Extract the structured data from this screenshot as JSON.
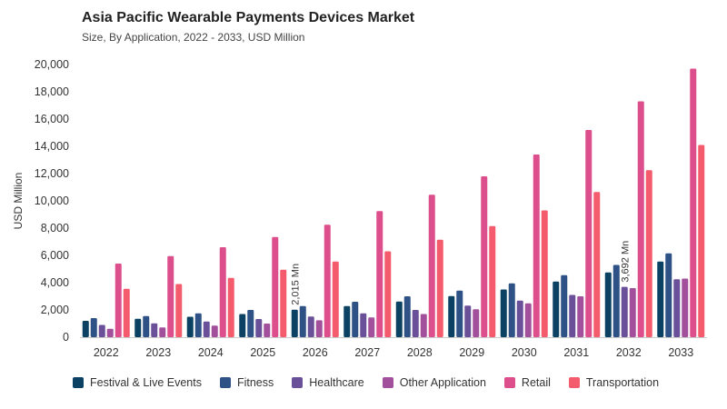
{
  "header": {
    "title": "Asia Pacific Wearable Payments Devices Market",
    "subtitle": "Size, By Application, 2022 - 2033, USD Million"
  },
  "chart_data": {
    "type": "bar",
    "title": "Asia Pacific Wearable Payments Devices Market",
    "subtitle": "Size, By Application, 2022 - 2033, USD Million",
    "xlabel": "",
    "ylabel": "USD Million",
    "ylim": [
      0,
      20000
    ],
    "yticks": [
      "0",
      "2,000",
      "4,000",
      "6,000",
      "8,000",
      "10,000",
      "12,000",
      "14,000",
      "16,000",
      "18,000",
      "20,000"
    ],
    "grid": false,
    "legend_position": "bottom",
    "categories": [
      "2022",
      "2023",
      "2024",
      "2025",
      "2026",
      "2027",
      "2028",
      "2029",
      "2030",
      "2031",
      "2032",
      "2033"
    ],
    "series": [
      {
        "name": "Festival & Live Events",
        "color": "#0b4263",
        "values": [
          1200,
          1350,
          1500,
          1700,
          2015,
          2280,
          2620,
          3020,
          3500,
          4080,
          4750,
          5550
        ]
      },
      {
        "name": "Fitness",
        "color": "#2f5286",
        "values": [
          1400,
          1550,
          1750,
          2000,
          2280,
          2600,
          3000,
          3420,
          3950,
          4550,
          5300,
          6150
        ]
      },
      {
        "name": "Healthcare",
        "color": "#6a5099",
        "values": [
          900,
          1020,
          1150,
          1330,
          1520,
          1750,
          2000,
          2320,
          2680,
          3100,
          3692,
          4250
        ]
      },
      {
        "name": "Other Application",
        "color": "#a2509c",
        "values": [
          620,
          720,
          850,
          1000,
          1240,
          1450,
          1700,
          2050,
          2480,
          3000,
          3600,
          4300
        ]
      },
      {
        "name": "Retail",
        "color": "#dd4f8c",
        "values": [
          5400,
          5950,
          6600,
          7350,
          8250,
          9250,
          10450,
          11800,
          13400,
          15200,
          17300,
          19700
        ]
      },
      {
        "name": "Transportation",
        "color": "#f45b6d",
        "values": [
          3550,
          3900,
          4350,
          4950,
          5550,
          6300,
          7150,
          8150,
          9300,
          10650,
          12250,
          14100
        ]
      }
    ],
    "annotations": [
      {
        "category": "2026",
        "series": "Festival & Live Events",
        "text": "2,015 Mn"
      },
      {
        "category": "2032",
        "series": "Healthcare",
        "text": "3,692 Mn"
      }
    ]
  }
}
